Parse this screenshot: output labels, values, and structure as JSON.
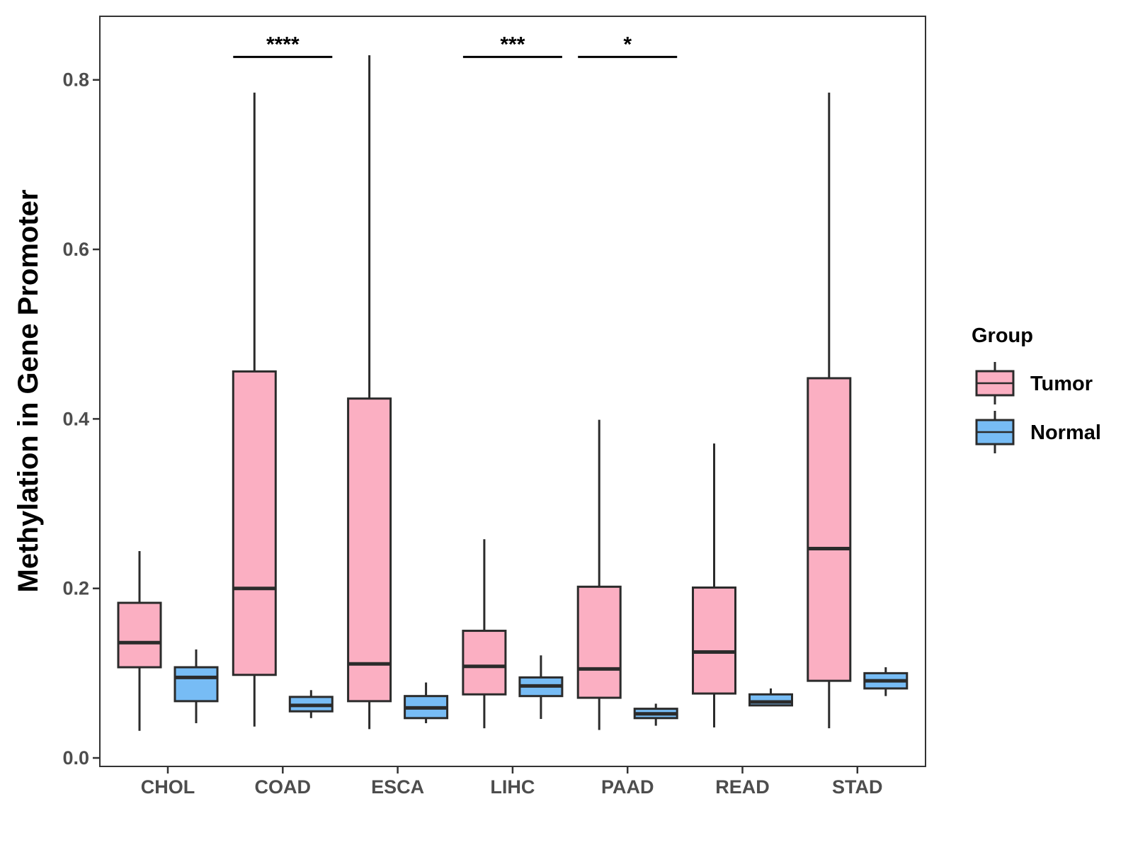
{
  "chart_data": {
    "type": "boxplot",
    "title": "",
    "xlabel": "",
    "ylabel": "Methylation in Gene Promoter",
    "ylim": [
      -0.01,
      0.875
    ],
    "yticks": [
      0.0,
      0.2,
      0.4,
      0.6,
      0.8
    ],
    "ytick_labels": [
      "0.0",
      "0.2",
      "0.4",
      "0.6",
      "0.8"
    ],
    "categories": [
      "CHOL",
      "COAD",
      "ESCA",
      "LIHC",
      "PAAD",
      "READ",
      "STAD"
    ],
    "legend": {
      "title": "Group",
      "position": "right"
    },
    "series": [
      {
        "name": "Tumor",
        "color": "#FBAFC2",
        "boxes": [
          {
            "min": 0.032,
            "q1": 0.107,
            "median": 0.136,
            "q3": 0.183,
            "max": 0.244
          },
          {
            "min": 0.037,
            "q1": 0.098,
            "median": 0.2,
            "q3": 0.456,
            "max": 0.785
          },
          {
            "min": 0.034,
            "q1": 0.067,
            "median": 0.111,
            "q3": 0.424,
            "max": 0.829
          },
          {
            "min": 0.035,
            "q1": 0.075,
            "median": 0.108,
            "q3": 0.15,
            "max": 0.258
          },
          {
            "min": 0.033,
            "q1": 0.071,
            "median": 0.105,
            "q3": 0.202,
            "max": 0.399
          },
          {
            "min": 0.036,
            "q1": 0.076,
            "median": 0.125,
            "q3": 0.201,
            "max": 0.371
          },
          {
            "min": 0.035,
            "q1": 0.091,
            "median": 0.247,
            "q3": 0.448,
            "max": 0.785
          }
        ]
      },
      {
        "name": "Normal",
        "color": "#77BCF5",
        "boxes": [
          {
            "min": 0.041,
            "q1": 0.067,
            "median": 0.095,
            "q3": 0.107,
            "max": 0.128
          },
          {
            "min": 0.047,
            "q1": 0.055,
            "median": 0.062,
            "q3": 0.072,
            "max": 0.08
          },
          {
            "min": 0.041,
            "q1": 0.047,
            "median": 0.059,
            "q3": 0.073,
            "max": 0.089
          },
          {
            "min": 0.046,
            "q1": 0.073,
            "median": 0.085,
            "q3": 0.095,
            "max": 0.121
          },
          {
            "min": 0.038,
            "q1": 0.047,
            "median": 0.052,
            "q3": 0.058,
            "max": 0.064
          },
          {
            "min": 0.061,
            "q1": 0.062,
            "median": 0.066,
            "q3": 0.075,
            "max": 0.082
          },
          {
            "min": 0.073,
            "q1": 0.082,
            "median": 0.091,
            "q3": 0.1,
            "max": 0.107
          }
        ]
      }
    ],
    "significance": [
      {
        "category": "COAD",
        "label": "****",
        "y": 0.827
      },
      {
        "category": "LIHC",
        "label": "***",
        "y": 0.827
      },
      {
        "category": "PAAD",
        "label": "*",
        "y": 0.827
      }
    ]
  }
}
